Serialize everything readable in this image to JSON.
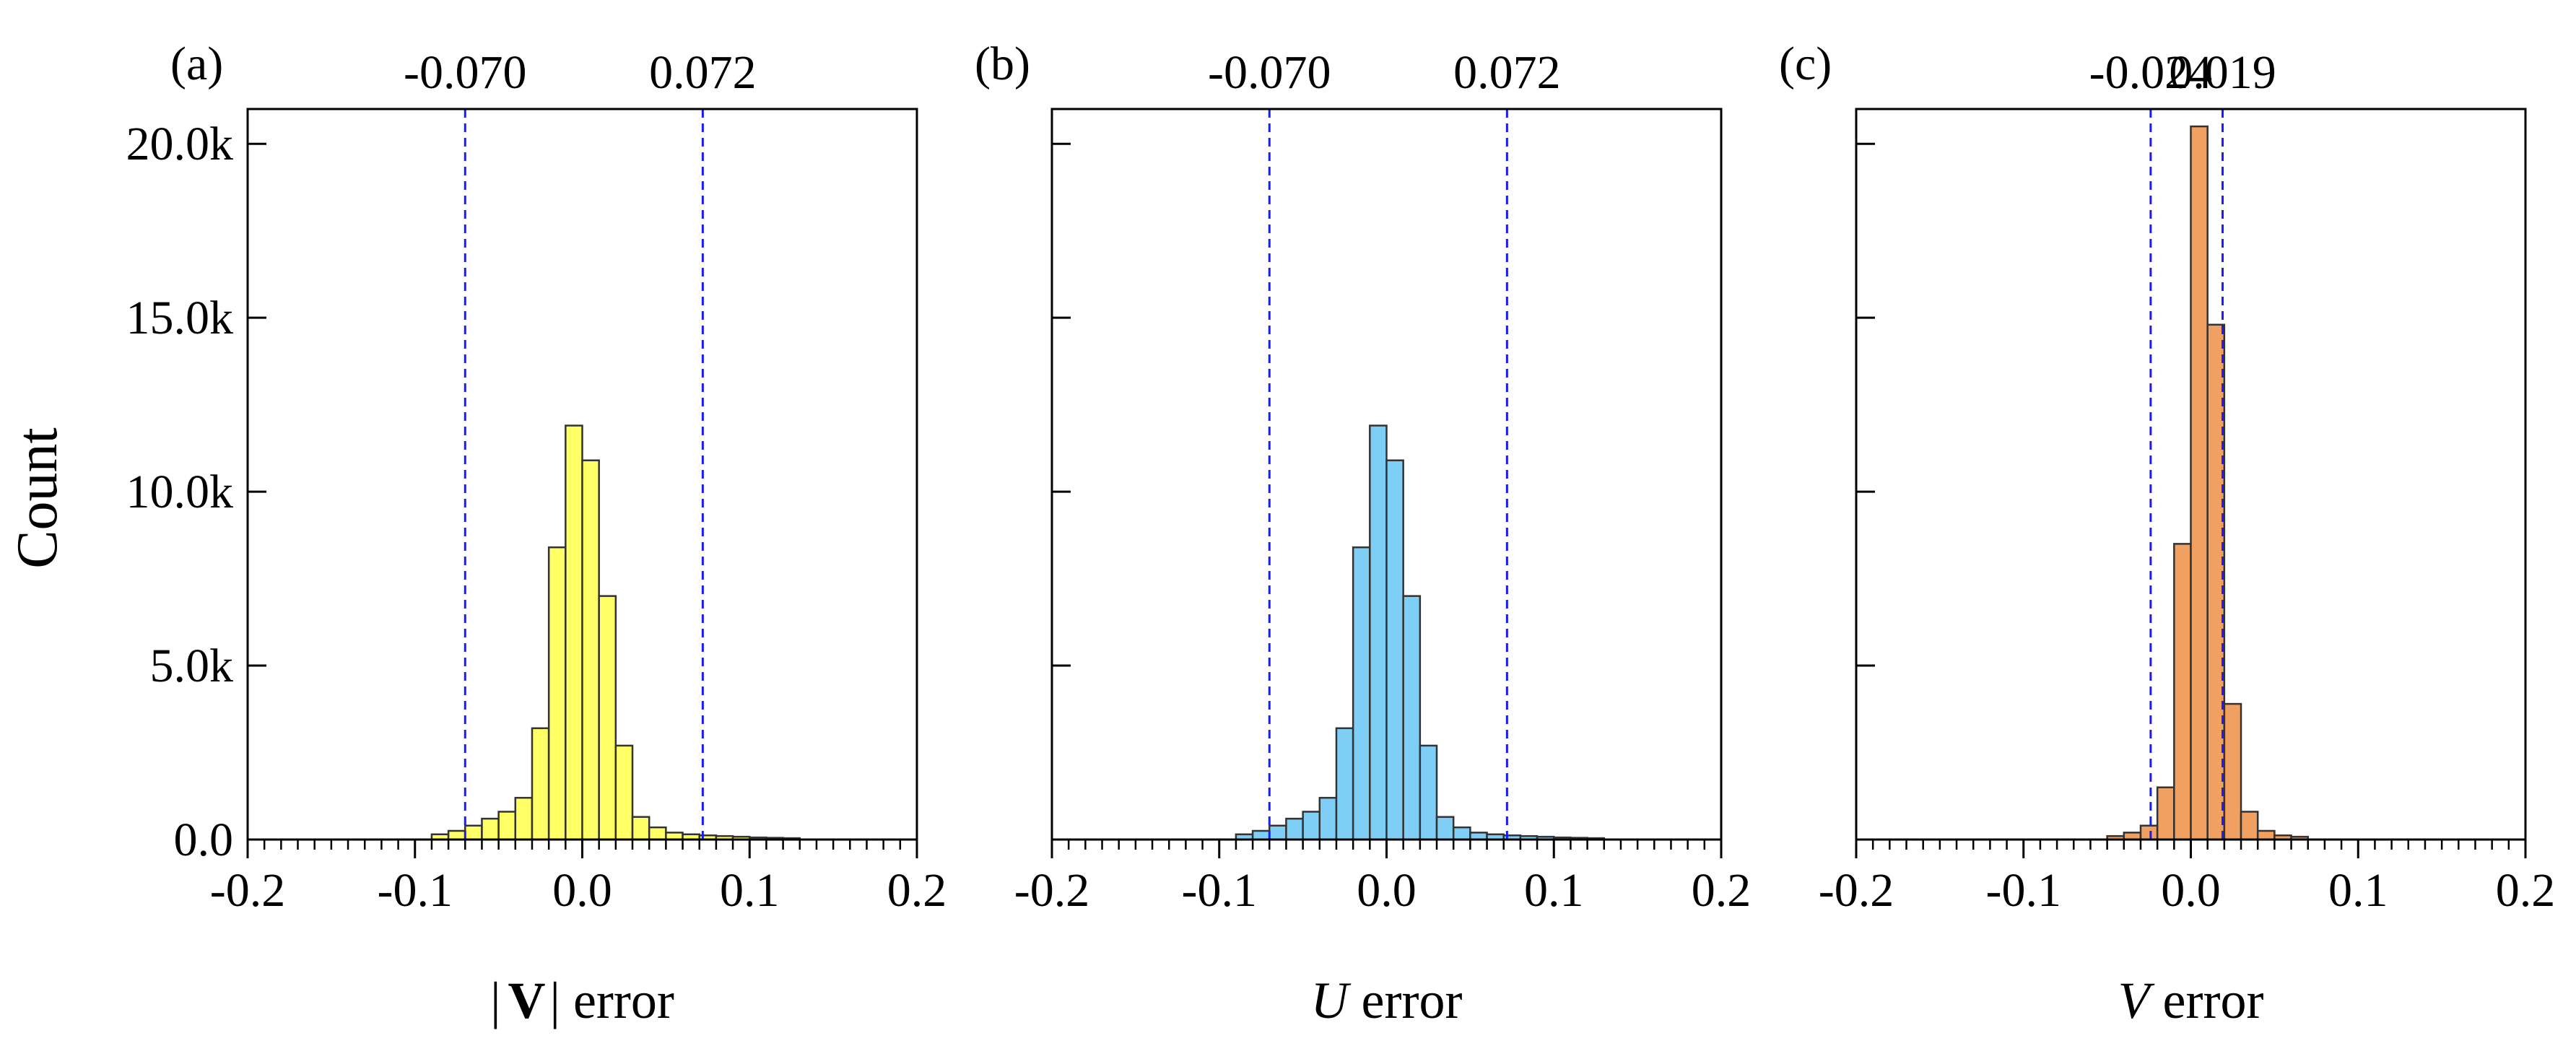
{
  "chart_data": [
    {
      "type": "bar",
      "panel_label": "(a)",
      "xlabel_parts": [
        "|",
        "V",
        "|",
        " error"
      ],
      "ylabel": "Count",
      "xlim": [
        -0.2,
        0.2
      ],
      "ylim": [
        0,
        21000
      ],
      "x_ticks": [
        "-0.2",
        "-0.1",
        "0.0",
        "0.1",
        "0.2"
      ],
      "y_ticks": [
        "0.0",
        "5.0k",
        "10.0k",
        "15.0k",
        "20.0k"
      ],
      "bin_width": 0.01,
      "bin_starts": [
        -0.09,
        -0.08,
        -0.07,
        -0.06,
        -0.05,
        -0.04,
        -0.03,
        -0.02,
        -0.01,
        0.0,
        0.01,
        0.02,
        0.03,
        0.04,
        0.05,
        0.06,
        0.07,
        0.08,
        0.09,
        0.1,
        0.11,
        0.12
      ],
      "counts": [
        150,
        250,
        400,
        600,
        800,
        1200,
        3200,
        8400,
        11900,
        10900,
        7000,
        2700,
        650,
        350,
        200,
        150,
        120,
        100,
        80,
        60,
        50,
        40
      ],
      "thresholds": [
        -0.07,
        0.072
      ],
      "threshold_labels": [
        "-0.070",
        "0.072"
      ],
      "bar_color": "#ffff66",
      "threshold_color": "#1a1aff"
    },
    {
      "type": "bar",
      "panel_label": "(b)",
      "xlabel_parts": [
        "U",
        " error"
      ],
      "xlim": [
        -0.2,
        0.2
      ],
      "ylim": [
        0,
        21000
      ],
      "x_ticks": [
        "-0.2",
        "-0.1",
        "0.0",
        "0.1",
        "0.2"
      ],
      "bin_width": 0.01,
      "bin_starts": [
        -0.09,
        -0.08,
        -0.07,
        -0.06,
        -0.05,
        -0.04,
        -0.03,
        -0.02,
        -0.01,
        0.0,
        0.01,
        0.02,
        0.03,
        0.04,
        0.05,
        0.06,
        0.07,
        0.08,
        0.09,
        0.1,
        0.11,
        0.12
      ],
      "counts": [
        150,
        250,
        400,
        600,
        800,
        1200,
        3200,
        8400,
        11900,
        10900,
        7000,
        2700,
        650,
        350,
        200,
        150,
        120,
        100,
        80,
        60,
        50,
        40
      ],
      "thresholds": [
        -0.07,
        0.072
      ],
      "threshold_labels": [
        "-0.070",
        "0.072"
      ],
      "bar_color": "#7fcef5",
      "threshold_color": "#1a1aff"
    },
    {
      "type": "bar",
      "panel_label": "(c)",
      "xlabel_parts": [
        "V",
        " error"
      ],
      "xlim": [
        -0.2,
        0.2
      ],
      "ylim": [
        0,
        21000
      ],
      "x_ticks": [
        "-0.2",
        "-0.1",
        "0.0",
        "0.1",
        "0.2"
      ],
      "bin_width": 0.01,
      "bin_starts": [
        -0.05,
        -0.04,
        -0.03,
        -0.02,
        -0.01,
        0.0,
        0.01,
        0.02,
        0.03,
        0.04,
        0.05,
        0.06
      ],
      "counts": [
        100,
        200,
        400,
        1500,
        8500,
        20500,
        14800,
        3900,
        800,
        250,
        120,
        80
      ],
      "thresholds": [
        -0.024,
        0.019
      ],
      "threshold_labels": [
        "-0.024",
        "0.019"
      ],
      "bar_color": "#f0a060",
      "threshold_color": "#1a1aff"
    }
  ]
}
